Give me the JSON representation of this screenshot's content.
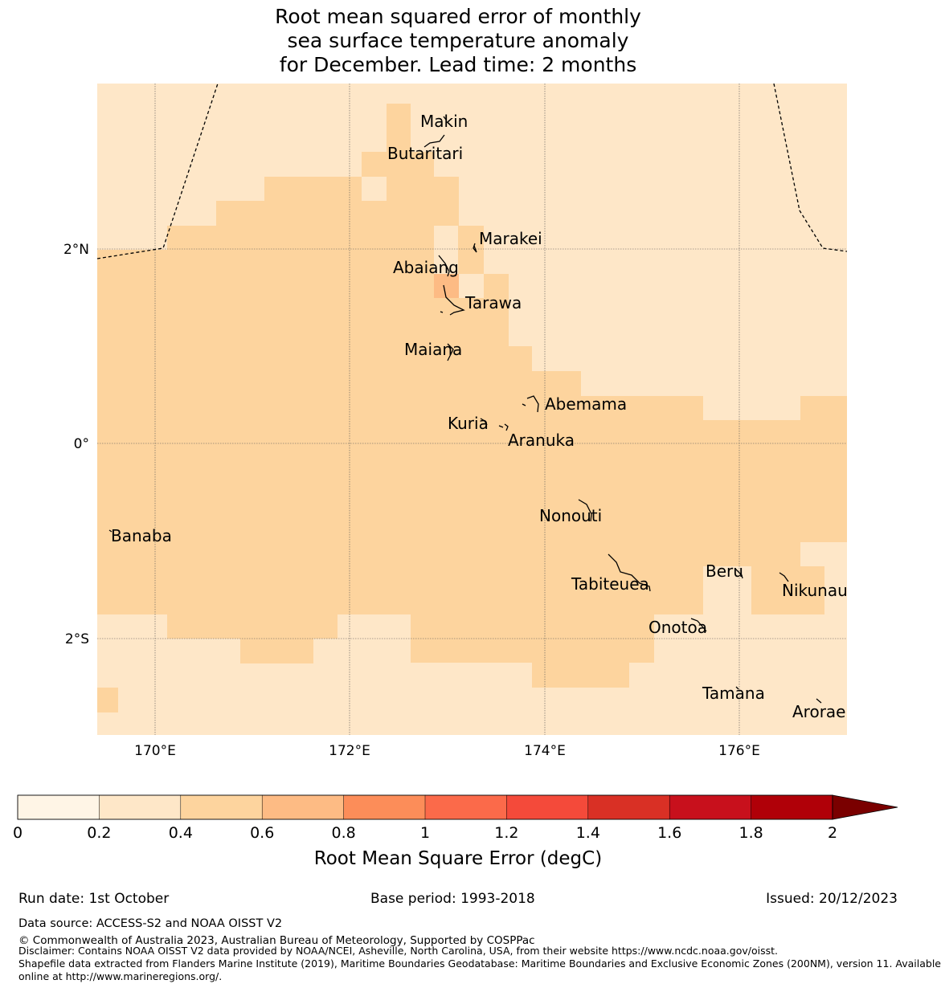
{
  "title_lines": [
    "Root mean squared error of monthly",
    "sea surface temperature anomaly",
    "for December. Lead time: 2 months"
  ],
  "map": {
    "lat_ticks": [
      "2°N",
      "0°",
      "2°S"
    ],
    "lon_ticks": [
      "170°E",
      "172°E",
      "174°E",
      "176°E"
    ],
    "extent": {
      "lon_min": 169.4,
      "lon_max": 177.1,
      "lat_min": -3.0,
      "lat_max": 3.7
    },
    "grid_cell_deg": 0.25,
    "islands": [
      {
        "name": "Makin",
        "label": "Makin"
      },
      {
        "name": "Butaritari",
        "label": "Butaritari"
      },
      {
        "name": "Marakei",
        "label": "Marakei"
      },
      {
        "name": "Abaiang",
        "label": "Abaiang"
      },
      {
        "name": "Tarawa",
        "label": "Tarawa"
      },
      {
        "name": "Maiana",
        "label": "Maiana"
      },
      {
        "name": "Abemama",
        "label": "Abemama"
      },
      {
        "name": "Kuria",
        "label": "Kuria"
      },
      {
        "name": "Aranuka",
        "label": "Aranuka"
      },
      {
        "name": "Nonouti",
        "label": "Nonouti"
      },
      {
        "name": "Banaba",
        "label": "Banaba"
      },
      {
        "name": "Tabiteuea",
        "label": "Tabiteuea"
      },
      {
        "name": "Beru",
        "label": "Beru"
      },
      {
        "name": "Nikunau",
        "label": "Nikunau"
      },
      {
        "name": "Onotoa",
        "label": "Onotoa"
      },
      {
        "name": "Tamana",
        "label": "Tamana"
      },
      {
        "name": "Arorae",
        "label": "Arorae"
      }
    ],
    "rmse_bins_present": [
      "0.2-0.4",
      "0.4-0.6",
      "0.6-0.8"
    ]
  },
  "colorbar": {
    "ticks": [
      "0",
      "0.2",
      "0.4",
      "0.6",
      "0.8",
      "1",
      "1.2",
      "1.4",
      "1.6",
      "1.8",
      "2"
    ],
    "colors": [
      "#fff5e6",
      "#fee7c8",
      "#fdd49e",
      "#fdbb84",
      "#fc8d59",
      "#fb6a4a",
      "#f44a3a",
      "#d93025",
      "#c8101c",
      "#b00008"
    ],
    "extend_color": "#7a0000",
    "label": "Root Mean Square Error (degC)"
  },
  "footer": {
    "run_date": "Run date: 1st October",
    "base_period": "Base period: 1993-2018",
    "issued": "Issued: 20/12/2023",
    "data_source": "Data source: ACCESS-S2 and NOAA OISST V2",
    "copyright": "© Commonwealth of Australia 2023, Australian Bureau of Meteorology, Supported by COSPPac",
    "disclaimer": "Disclaimer: Contains NOAA OISST V2 data provided by NOAA/NCEI, Asheville, North Carolina, USA, from their website https://www.ncdc.noaa.gov/oisst.",
    "shapefile_1": "Shapefile data extracted from Flanders Marine Institute (2019), Maritime Boundaries Geodatabase: Maritime Boundaries and Exclusive Economic Zones (200NM), version 11. Available",
    "shapefile_2": "online at http://www.marineregions.org/."
  }
}
